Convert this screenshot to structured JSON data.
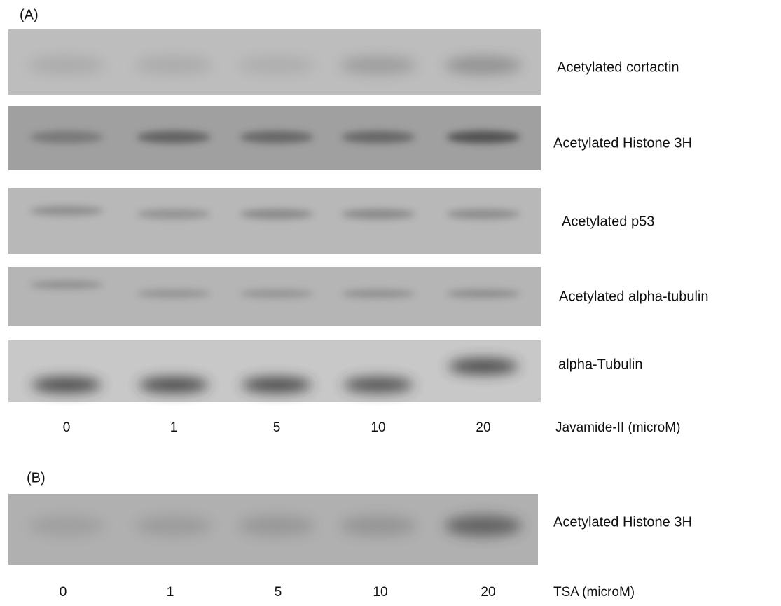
{
  "panels": [
    {
      "label": "(A)",
      "blots": [
        {
          "name": "Acetylated cortactin"
        },
        {
          "name": "Acetylated Histone 3H"
        },
        {
          "name": "Acetylated p53"
        },
        {
          "name": "Acetylated alpha-tubulin"
        },
        {
          "name": "alpha-Tubulin"
        }
      ],
      "lanes": [
        "0",
        "1",
        "5",
        "10",
        "20"
      ],
      "lane_title": "Javamide-II (microM)"
    },
    {
      "label": "(B)",
      "blots": [
        {
          "name": "Acetylated Histone 3H"
        }
      ],
      "lanes": [
        "0",
        "1",
        "5",
        "10",
        "20"
      ],
      "lane_title": "TSA (microM)"
    }
  ]
}
